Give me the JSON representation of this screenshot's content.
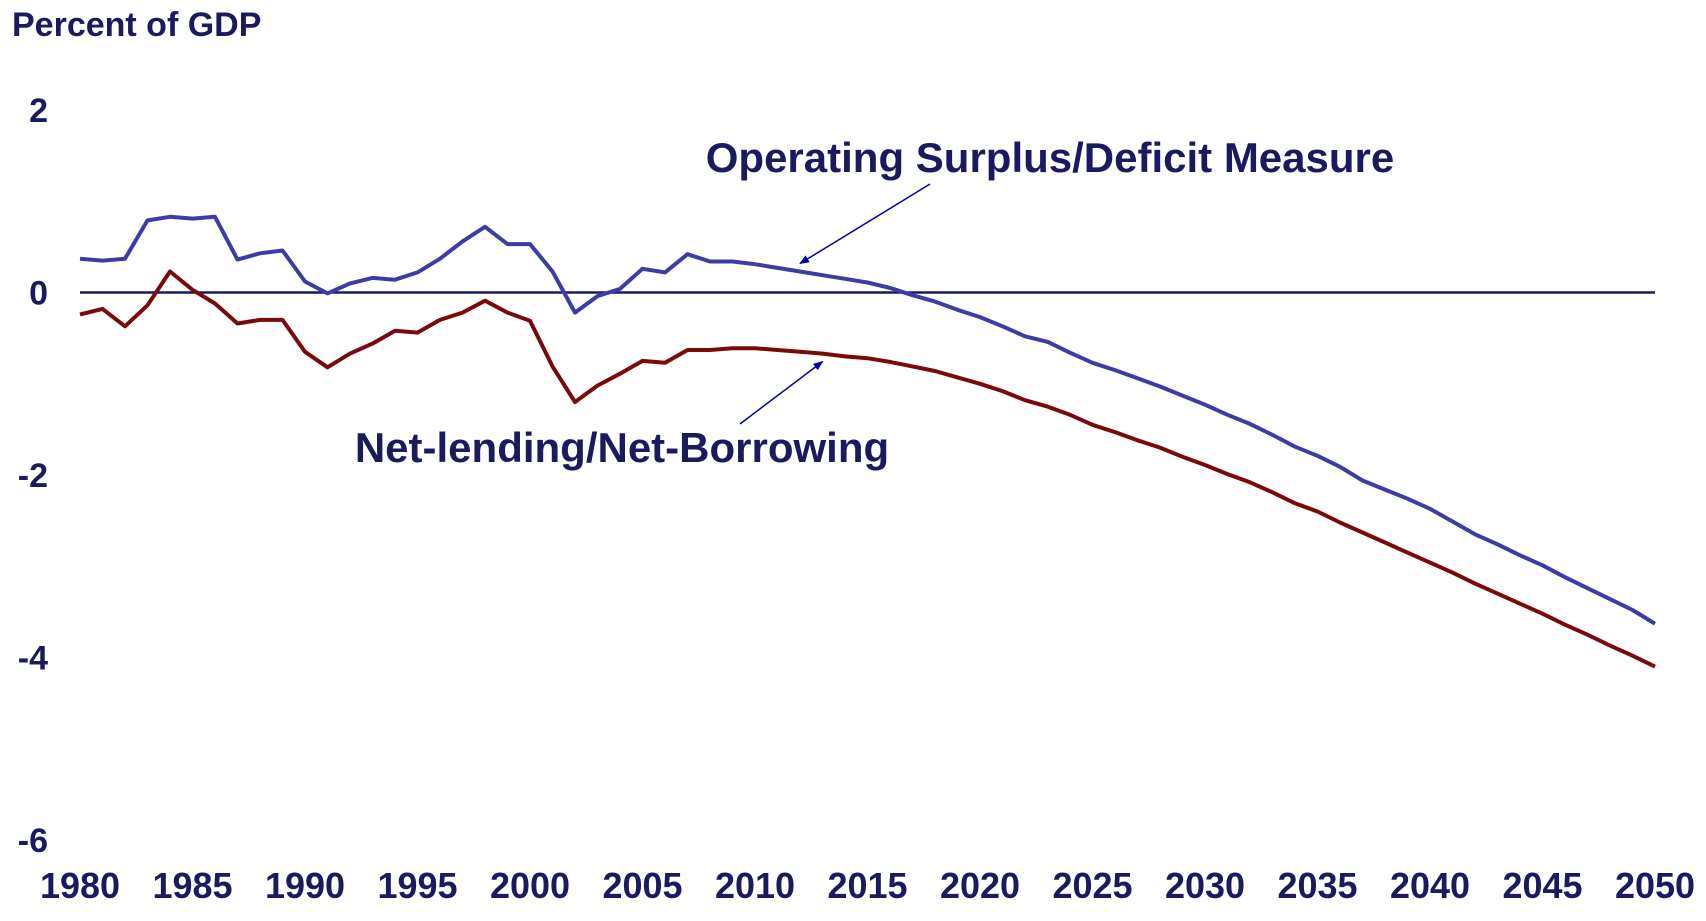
{
  "colors": {
    "text": "#1a1a5e",
    "operating": "#3c3ca6",
    "netlending": "#7a0a0a",
    "zero_line": "#1a1a5e",
    "arrow": "#0000a0"
  },
  "chart_data": {
    "type": "line",
    "unit_label": "Percent of GDP",
    "ylim": [
      -6,
      2
    ],
    "y_ticks": [
      "2",
      "0",
      "-2",
      "-4",
      "-6"
    ],
    "x_ticks": [
      "1980",
      "1985",
      "1990",
      "1995",
      "2000",
      "2005",
      "2010",
      "2015",
      "2020",
      "2025",
      "2030",
      "2035",
      "2040",
      "2045",
      "2050"
    ],
    "grid": false,
    "zero_line": true,
    "x": [
      1980,
      1981,
      1982,
      1983,
      1984,
      1985,
      1986,
      1987,
      1988,
      1989,
      1990,
      1991,
      1992,
      1993,
      1994,
      1995,
      1996,
      1997,
      1998,
      1999,
      2000,
      2001,
      2002,
      2003,
      2004,
      2005,
      2006,
      2007,
      2008,
      2009,
      2010,
      2011,
      2012,
      2013,
      2014,
      2015,
      2016,
      2017,
      2018,
      2019,
      2020,
      2021,
      2022,
      2023,
      2024,
      2025,
      2026,
      2027,
      2028,
      2029,
      2030,
      2031,
      2032,
      2033,
      2034,
      2035,
      2036,
      2037,
      2038,
      2039,
      2040,
      2041,
      2042,
      2043,
      2044,
      2045,
      2046,
      2047,
      2048,
      2049,
      2050
    ],
    "series": [
      {
        "name": "Operating Surplus/Deficit Measure",
        "values": [
          0.37,
          0.35,
          0.37,
          0.79,
          0.83,
          0.81,
          0.83,
          0.36,
          0.43,
          0.46,
          0.12,
          -0.01,
          0.1,
          0.16,
          0.14,
          0.22,
          0.37,
          0.56,
          0.72,
          0.53,
          0.53,
          0.23,
          -0.22,
          -0.04,
          0.04,
          0.26,
          0.22,
          0.42,
          0.34,
          0.34,
          0.31,
          0.27,
          0.23,
          0.19,
          0.15,
          0.11,
          0.05,
          -0.03,
          -0.1,
          -0.19,
          -0.27,
          -0.37,
          -0.48,
          -0.54,
          -0.66,
          -0.77,
          -0.85,
          -0.94,
          -1.03,
          -1.13,
          -1.23,
          -1.34,
          -1.44,
          -1.56,
          -1.69,
          -1.79,
          -1.91,
          -2.06,
          -2.16,
          -2.26,
          -2.37,
          -2.51,
          -2.65,
          -2.76,
          -2.88,
          -2.99,
          -3.12,
          -3.24,
          -3.36,
          -3.48,
          -3.63
        ]
      },
      {
        "name": "Net-lending/Net-Borrowing",
        "values": [
          -0.24,
          -0.18,
          -0.37,
          -0.14,
          0.23,
          0.03,
          -0.12,
          -0.34,
          -0.3,
          -0.3,
          -0.65,
          -0.82,
          -0.67,
          -0.56,
          -0.42,
          -0.44,
          -0.3,
          -0.22,
          -0.09,
          -0.22,
          -0.31,
          -0.81,
          -1.2,
          -1.02,
          -0.89,
          -0.75,
          -0.77,
          -0.63,
          -0.63,
          -0.61,
          -0.61,
          -0.63,
          -0.65,
          -0.67,
          -0.7,
          -0.72,
          -0.76,
          -0.81,
          -0.86,
          -0.93,
          -1.0,
          -1.08,
          -1.18,
          -1.25,
          -1.34,
          -1.45,
          -1.53,
          -1.62,
          -1.7,
          -1.8,
          -1.89,
          -1.99,
          -2.08,
          -2.19,
          -2.31,
          -2.4,
          -2.52,
          -2.63,
          -2.74,
          -2.85,
          -2.96,
          -3.07,
          -3.19,
          -3.3,
          -3.41,
          -3.52,
          -3.64,
          -3.75,
          -3.87,
          -3.98,
          -4.1
        ]
      }
    ],
    "annotations": [
      {
        "text": "Operating Surplus/Deficit Measure",
        "target_series": 0,
        "target_year": 2012
      },
      {
        "text": "Net-lending/Net-Borrowing",
        "target_series": 1,
        "target_year": 2013
      }
    ]
  }
}
